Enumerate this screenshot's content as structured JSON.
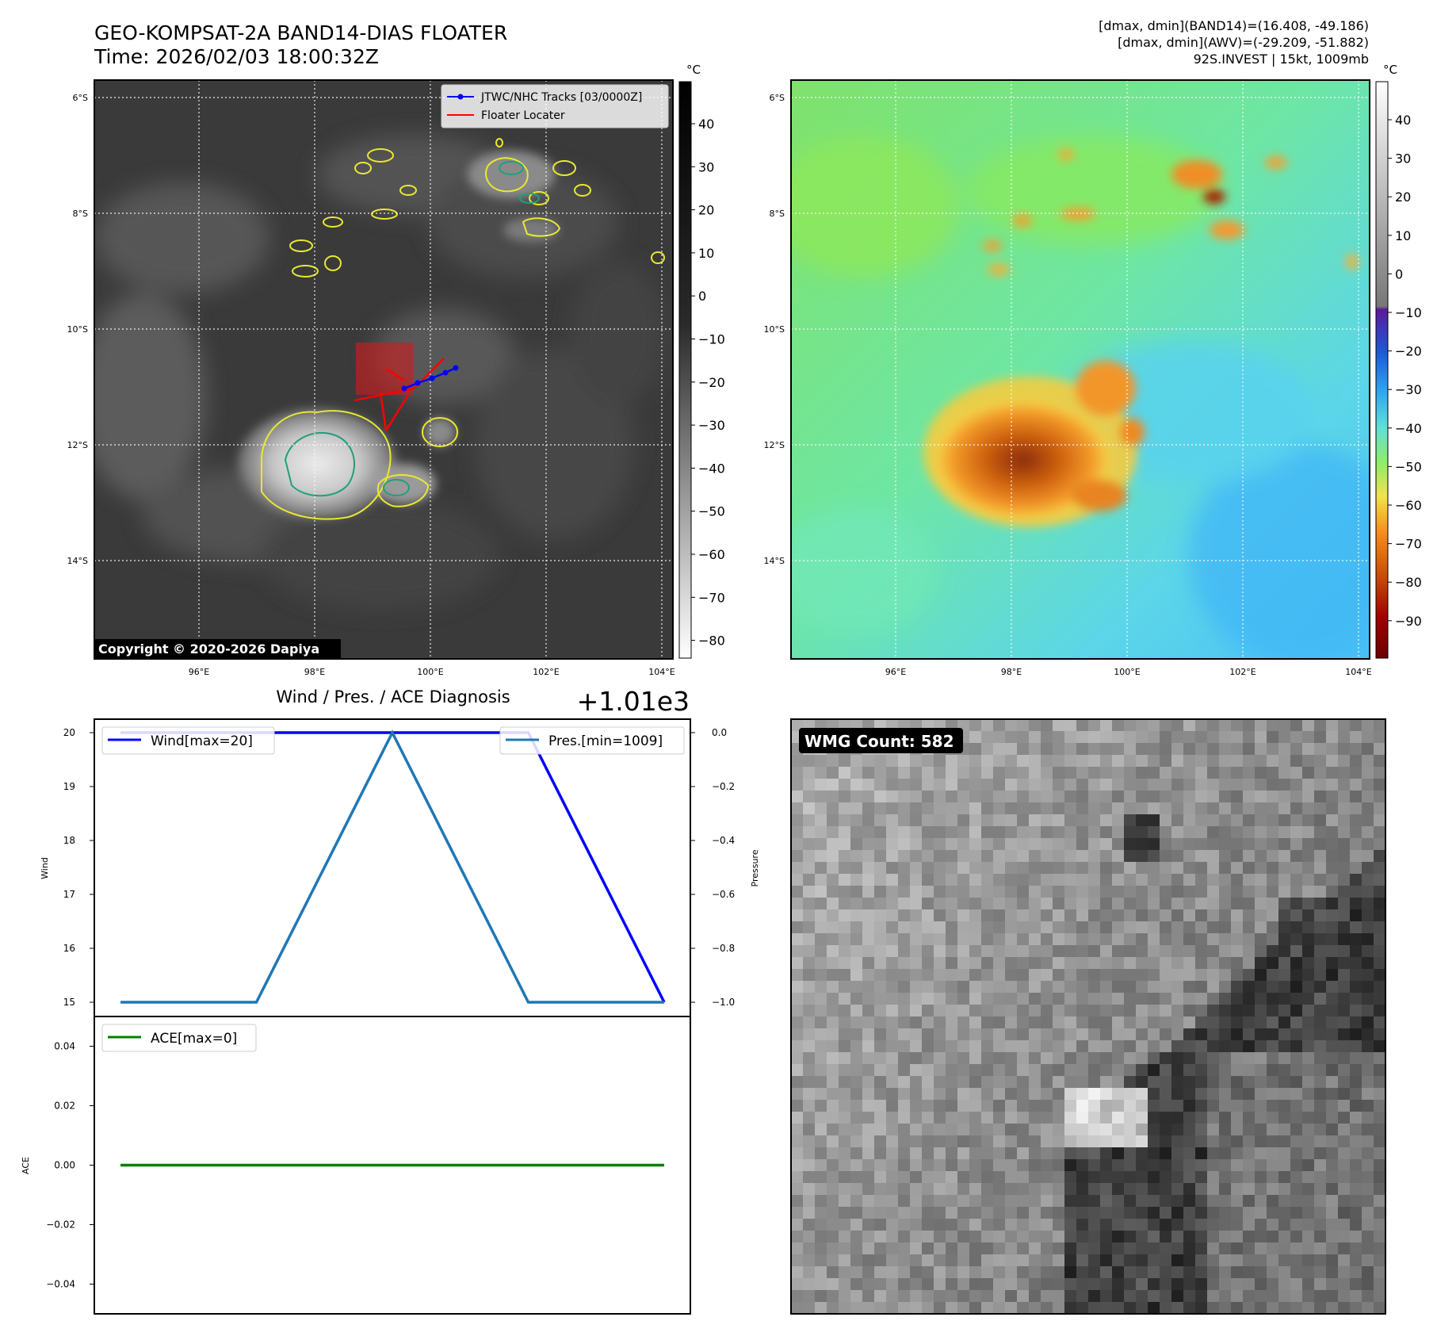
{
  "header": {
    "title_line1": "GEO-KOMPSAT-2A BAND14-DIAS FLOATER",
    "title_line2": "Time: 2026/02/03 18:00:32Z",
    "info_line1": "[dmax, dmin](BAND14)=(16.408, -49.186)",
    "info_line2": "[dmax, dmin](AWV)=(-29.209, -51.882)",
    "info_line3": "92S.INVEST | 15kt, 1009mb"
  },
  "map_common": {
    "lat_labels": [
      "6°S",
      "8°S",
      "10°S",
      "12°S",
      "14°S"
    ],
    "lon_labels": [
      "96°E",
      "98°E",
      "100°E",
      "102°E",
      "104°E"
    ]
  },
  "ir_panel": {
    "legend": {
      "tracks_label": "JTWC/NHC Tracks [03/0000Z]",
      "floater_label": "Floater Locater",
      "tracks_color": "#0000ff",
      "floater_color": "#ff0000"
    },
    "copyright": "Copyright © 2020-2026 Dapiya",
    "colorbar": {
      "unit": "°C",
      "ticks": [
        "40",
        "30",
        "20",
        "10",
        "0",
        "−10",
        "−20",
        "−30",
        "−40",
        "−50",
        "−60",
        "−70",
        "−80"
      ]
    }
  },
  "awv_panel": {
    "colorbar": {
      "unit": "°C",
      "ticks": [
        "40",
        "30",
        "20",
        "10",
        "0",
        "−10",
        "−20",
        "−30",
        "−40",
        "−50",
        "−60",
        "−70",
        "−80",
        "−90"
      ]
    }
  },
  "wmg_panel": {
    "label": "WMG Count: 582"
  },
  "chart_data": [
    {
      "type": "line",
      "title": "Wind / Pres. / ACE Diagnosis",
      "offset_label": "+1.01e3",
      "x": [
        0,
        1,
        2,
        3,
        4
      ],
      "series": [
        {
          "name": "Wind[max=20]",
          "axis": "left",
          "color": "#0000ff",
          "values": [
            20,
            20,
            20,
            20,
            15
          ]
        },
        {
          "name": "Pres.[min=1009]",
          "axis": "right",
          "color": "#1f77b4",
          "values": [
            1009,
            1009,
            1010,
            1009,
            1009
          ]
        }
      ],
      "ylabel": "Wind",
      "ylabel_right": "Pressure",
      "ylim": [
        15,
        20
      ],
      "yticks": [
        "15",
        "16",
        "17",
        "18",
        "19",
        "20"
      ],
      "ylim_right": [
        1009,
        1010
      ],
      "yticks_right": [
        "−1.0",
        "−0.8",
        "−0.6",
        "−0.4",
        "−0.2",
        "0.0"
      ]
    },
    {
      "type": "line",
      "x": [
        0,
        1,
        2,
        3,
        4
      ],
      "series": [
        {
          "name": "ACE[max=0]",
          "color": "#008000",
          "values": [
            0,
            0,
            0,
            0,
            0
          ]
        }
      ],
      "ylabel": "ACE",
      "ylim": [
        -0.05,
        0.05
      ],
      "yticks": [
        "0.04",
        "0.02",
        "0.00",
        "−0.02",
        "−0.04"
      ]
    }
  ]
}
